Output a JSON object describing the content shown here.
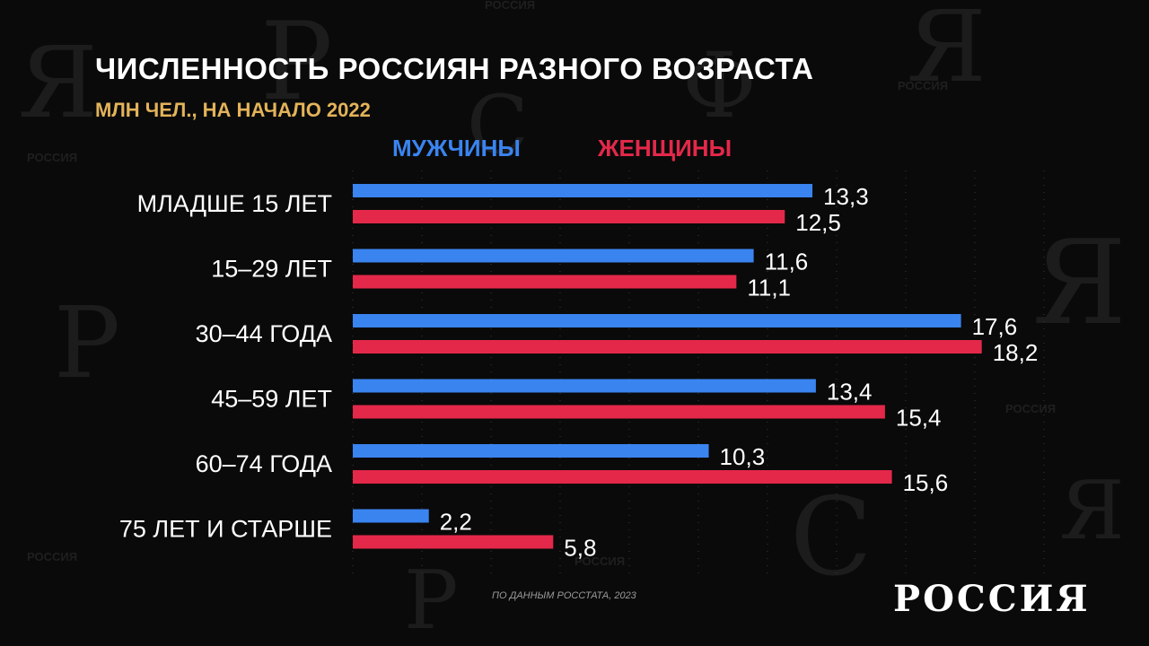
{
  "header": {
    "title": "ЧИСЛЕННОСТЬ РОССИЯН РАЗНОГО ВОЗРАСТА",
    "subtitle": "МЛН ЧЕЛ., НА НАЧАЛО 2022"
  },
  "legend": {
    "men": "МУЖЧИНЫ",
    "women": "ЖЕНЩИНЫ"
  },
  "colors": {
    "men": "#3a84f0",
    "women": "#e4284a",
    "background": "#0a0a0a",
    "subtitle": "#e3b35a"
  },
  "chart_data": {
    "type": "bar",
    "orientation": "horizontal",
    "categories": [
      "МЛАДШЕ 15 ЛЕТ",
      "15–29 ЛЕТ",
      "30–44 ГОДА",
      "45–59 ЛЕТ",
      "60–74 ГОДА",
      "75 ЛЕТ И СТАРШЕ"
    ],
    "series": [
      {
        "name": "МУЖЧИНЫ",
        "values": [
          13.3,
          11.6,
          17.6,
          13.4,
          10.3,
          2.2
        ],
        "labels": [
          "13,3",
          "11,6",
          "17,6",
          "13,4",
          "10,3",
          "2,2"
        ]
      },
      {
        "name": "ЖЕНЩИНЫ",
        "values": [
          12.5,
          11.1,
          18.2,
          15.4,
          15.6,
          5.8
        ],
        "labels": [
          "12,5",
          "11,1",
          "18,2",
          "15,4",
          "15,6",
          "5,8"
        ]
      }
    ],
    "title": "ЧИСЛЕННОСТЬ РОССИЯН РАЗНОГО ВОЗРАСТА",
    "subtitle": "МЛН ЧЕЛ., НА НАЧАЛО 2022",
    "xlim": [
      0,
      20
    ],
    "grid": true,
    "legend": "top"
  },
  "footer": {
    "source": "ПО ДАННЫМ РОССТАТА, 2023",
    "logo": "РОССИЯ"
  },
  "background": {
    "watermark": "РОССИЯ",
    "letters": [
      "Я",
      "Р",
      "С",
      "Ф",
      "Я",
      "Р",
      "Я",
      "С",
      "Р",
      "Я"
    ]
  }
}
